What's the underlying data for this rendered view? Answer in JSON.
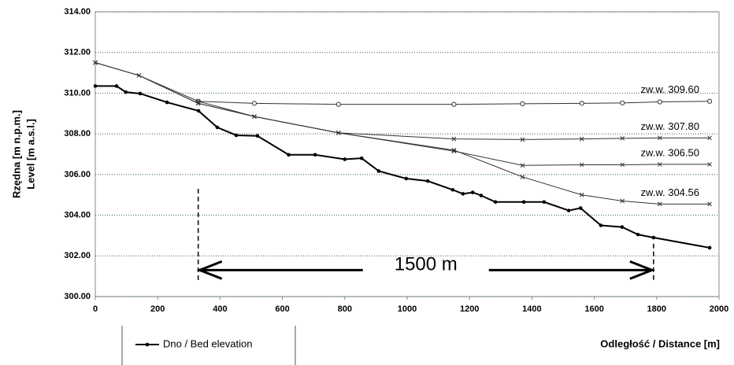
{
  "chart_data": {
    "type": "line",
    "y_title_lines": [
      "Rzędna [m n.p.m.]",
      "Level [m a.s.l.]"
    ],
    "x_title": "Odległość / Distance [m]",
    "xlim": [
      0,
      2000
    ],
    "xticks": [
      0,
      200,
      400,
      600,
      800,
      1000,
      1200,
      1400,
      1600,
      1800,
      2000
    ],
    "ylim": [
      300,
      314
    ],
    "yticks": [
      {
        "value": 300,
        "label": "300.00"
      },
      {
        "value": 302,
        "label": "302.00"
      },
      {
        "value": 304,
        "label": "304.00"
      },
      {
        "value": 306,
        "label": "306.00"
      },
      {
        "value": 308,
        "label": "308.00"
      },
      {
        "value": 310,
        "label": "310.00"
      },
      {
        "value": 312,
        "label": "312.00"
      },
      {
        "value": 314,
        "label": "314.00"
      }
    ],
    "grid": true,
    "series": [
      {
        "name": "Dno / Bed elevation",
        "color": "#000000",
        "marker": "dot",
        "width": 2,
        "in_legend": true,
        "x": [
          0,
          68,
          98,
          144,
          230,
          331,
          391,
          452,
          520,
          620,
          705,
          800,
          854,
          909,
          997,
          1066,
          1146,
          1179,
          1210,
          1237,
          1283,
          1374,
          1439,
          1518,
          1556,
          1621,
          1689,
          1740,
          1790,
          1970
        ],
        "values": [
          310.35,
          310.35,
          310.05,
          309.98,
          309.55,
          309.13,
          308.32,
          307.93,
          307.9,
          306.97,
          306.97,
          306.75,
          306.8,
          306.17,
          305.8,
          305.68,
          305.25,
          305.05,
          305.12,
          304.97,
          304.65,
          304.65,
          304.65,
          304.23,
          304.35,
          303.5,
          303.42,
          303.05,
          302.9,
          302.4
        ]
      },
      {
        "name": "zw.w.  309.60",
        "color": "#333333",
        "marker": "circle",
        "width": 1,
        "in_legend": false,
        "x": [
          0,
          140,
          330,
          510,
          780,
          1150,
          1370,
          1560,
          1690,
          1810,
          1970
        ],
        "values": [
          null,
          null,
          309.6,
          309.5,
          309.45,
          309.45,
          309.48,
          309.5,
          309.52,
          309.57,
          309.6
        ]
      },
      {
        "name": "zw.w.  307.80",
        "color": "#333333",
        "marker": "x",
        "width": 1,
        "in_legend": false,
        "x": [
          0,
          140,
          330,
          510,
          780,
          1150,
          1370,
          1560,
          1690,
          1810,
          1970
        ],
        "values": [
          311.5,
          310.87,
          309.5,
          308.85,
          308.05,
          307.75,
          307.72,
          307.75,
          307.78,
          307.8,
          307.8
        ]
      },
      {
        "name": "zw.w.  306.50",
        "color": "#333333",
        "marker": "x",
        "width": 1,
        "in_legend": false,
        "x": [
          0,
          140,
          330,
          510,
          780,
          1150,
          1370,
          1560,
          1690,
          1810,
          1970
        ],
        "values": [
          311.5,
          310.87,
          309.5,
          308.85,
          308.05,
          307.15,
          306.45,
          306.48,
          306.48,
          306.5,
          306.5
        ]
      },
      {
        "name": "zw.w.  304.56",
        "color": "#333333",
        "marker": "x",
        "width": 1,
        "in_legend": false,
        "x": [
          0,
          140,
          330,
          510,
          780,
          1150,
          1370,
          1560,
          1690,
          1810,
          1970
        ],
        "values": [
          311.5,
          310.87,
          309.6,
          308.85,
          308.05,
          307.2,
          305.88,
          305.0,
          304.7,
          304.55,
          304.55
        ]
      }
    ],
    "span_annotation": {
      "text": "1500 m",
      "x1": 330,
      "x2": 1790,
      "y": 301.3
    },
    "dashed_markers": [
      {
        "x": 330,
        "y1": 305.3,
        "y2": 300.7
      },
      {
        "x": 1790,
        "y1": 302.6,
        "y2": 300.7
      }
    ]
  }
}
